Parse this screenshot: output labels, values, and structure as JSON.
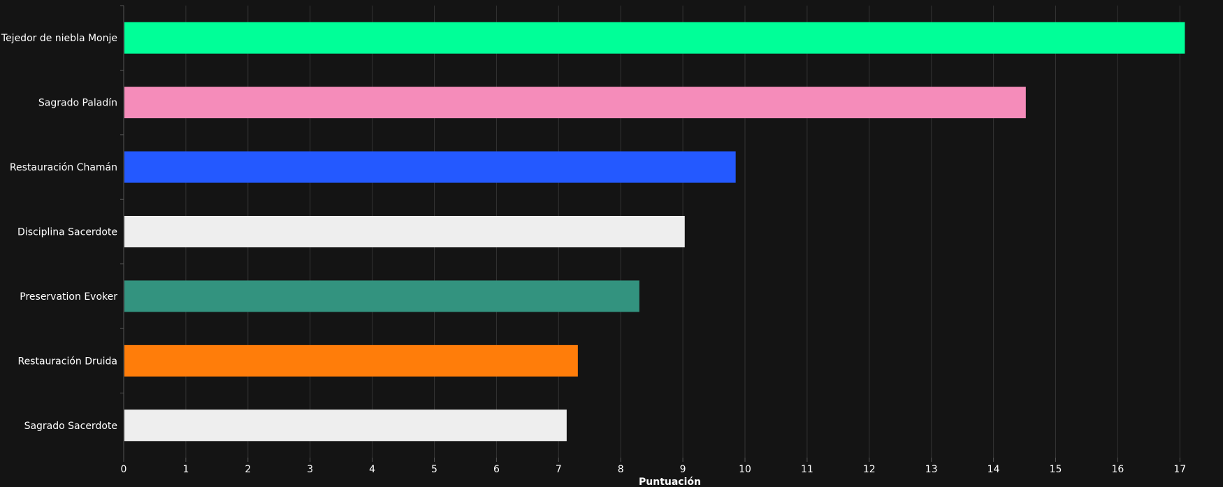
{
  "chart_data": {
    "type": "bar",
    "orientation": "horizontal",
    "categories": [
      "Tejedor de niebla Monje",
      "Sagrado Paladín",
      "Restauración Chamán",
      "Disciplina Sacerdote",
      "Preservation Evoker",
      "Restauración Druida",
      "Sagrado Sacerdote"
    ],
    "values": [
      17.08,
      14.52,
      9.85,
      9.03,
      8.3,
      7.31,
      7.13
    ],
    "colors": [
      "#00FF98",
      "#F58CBA",
      "#2459FF",
      "#EEEEEE",
      "#33937F",
      "#FF7D0A",
      "#EEEEEE"
    ],
    "xlabel": "Puntuación",
    "ylabel": "",
    "xlim": [
      0,
      17.5
    ],
    "xticks": [
      0,
      1,
      2,
      3,
      4,
      5,
      6,
      7,
      8,
      9,
      10,
      11,
      12,
      13,
      14,
      15,
      16,
      17
    ],
    "grid": true,
    "background": "#141414"
  }
}
